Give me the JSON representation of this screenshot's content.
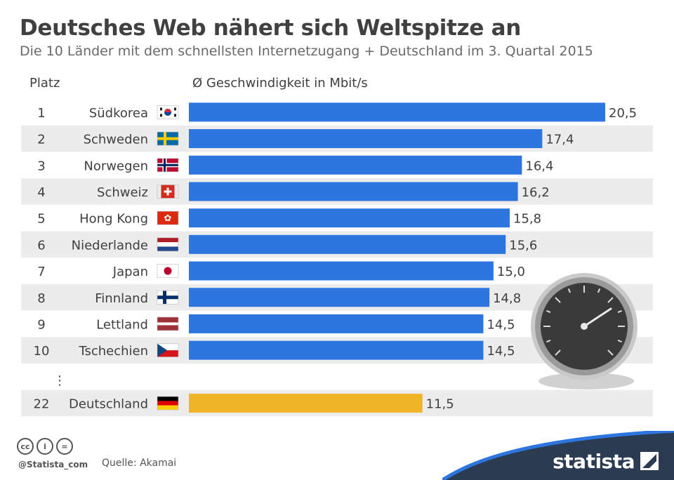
{
  "title": "Deutsches Web nähert sich Weltspitze an",
  "subtitle": "Die 10 Länder mit dem schnellsten Internetzugang + Deutschland im 3. Quartal 2015",
  "columns": {
    "rank": "Platz",
    "speed": "Ø Geschwindigkeit in Mbit/s"
  },
  "gap_marker": "⋮",
  "colors": {
    "bar": "#2e76df",
    "highlight": "#f0b429",
    "stripe": "#ececec",
    "text": "#404040"
  },
  "icons": [
    "creative-commons-icon",
    "attribution-icon",
    "no-derivatives-icon",
    "speedometer-icon",
    "statista-logo-icon"
  ],
  "footer": {
    "cc_labels": [
      "cc",
      "i",
      "="
    ],
    "handle": "@Statista_com",
    "source": "Quelle: Akamai",
    "brand": "statista"
  },
  "chart_data": {
    "type": "bar",
    "orientation": "horizontal",
    "xlim": [
      0,
      20.5
    ],
    "rows": [
      {
        "rank": "1",
        "country": "Südkorea",
        "value": 20.5,
        "label": "20,5",
        "flag": "kr"
      },
      {
        "rank": "2",
        "country": "Schweden",
        "value": 17.4,
        "label": "17,4",
        "flag": "se"
      },
      {
        "rank": "3",
        "country": "Norwegen",
        "value": 16.4,
        "label": "16,4",
        "flag": "no"
      },
      {
        "rank": "4",
        "country": "Schweiz",
        "value": 16.2,
        "label": "16,2",
        "flag": "ch"
      },
      {
        "rank": "5",
        "country": "Hong Kong",
        "value": 15.8,
        "label": "15,8",
        "flag": "hk"
      },
      {
        "rank": "6",
        "country": "Niederlande",
        "value": 15.6,
        "label": "15,6",
        "flag": "nl"
      },
      {
        "rank": "7",
        "country": "Japan",
        "value": 15.0,
        "label": "15,0",
        "flag": "jp"
      },
      {
        "rank": "8",
        "country": "Finnland",
        "value": 14.8,
        "label": "14,8",
        "flag": "fi"
      },
      {
        "rank": "9",
        "country": "Lettland",
        "value": 14.5,
        "label": "14,5",
        "flag": "lv"
      },
      {
        "rank": "10",
        "country": "Tschechien",
        "value": 14.5,
        "label": "14,5",
        "flag": "cz"
      },
      {
        "rank": "22",
        "country": "Deutschland",
        "value": 11.5,
        "label": "11,5",
        "flag": "de",
        "highlight": true
      }
    ]
  }
}
